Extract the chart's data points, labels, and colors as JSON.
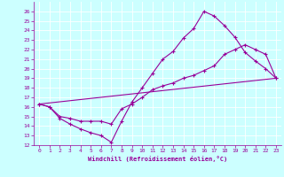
{
  "xlabel": "Windchill (Refroidissement éolien,°C)",
  "bg_color": "#ccffff",
  "line_color": "#990099",
  "grid_color": "#aadddd",
  "xlim": [
    -0.5,
    23.5
  ],
  "ylim": [
    12,
    27
  ],
  "xticks": [
    0,
    1,
    2,
    3,
    4,
    5,
    6,
    7,
    8,
    9,
    10,
    11,
    12,
    13,
    14,
    15,
    16,
    17,
    18,
    19,
    20,
    21,
    22,
    23
  ],
  "yticks": [
    12,
    13,
    14,
    15,
    16,
    17,
    18,
    19,
    20,
    21,
    22,
    23,
    24,
    25,
    26
  ],
  "line1_x": [
    0,
    1,
    2,
    3,
    4,
    5,
    6,
    7,
    8,
    9,
    10,
    11,
    12,
    13,
    14,
    15,
    16,
    17,
    18,
    19,
    20,
    21,
    22,
    23
  ],
  "line1_y": [
    16.3,
    16.0,
    14.8,
    14.2,
    13.7,
    13.3,
    13.0,
    12.3,
    14.5,
    16.5,
    18.0,
    19.5,
    21.0,
    21.8,
    23.2,
    24.2,
    26.0,
    25.5,
    24.5,
    23.3,
    21.7,
    20.8,
    20.0,
    19.0
  ],
  "line2_x": [
    0,
    1,
    2,
    3,
    4,
    5,
    6,
    7,
    8,
    9,
    10,
    11,
    12,
    13,
    14,
    15,
    16,
    17,
    18,
    19,
    20,
    21,
    22,
    23
  ],
  "line2_y": [
    16.3,
    16.0,
    15.0,
    14.8,
    14.5,
    14.5,
    14.5,
    14.2,
    15.8,
    16.3,
    17.0,
    17.8,
    18.2,
    18.5,
    19.0,
    19.3,
    19.8,
    20.3,
    21.5,
    22.0,
    22.5,
    22.0,
    21.5,
    19.0
  ],
  "line3_x": [
    0,
    23
  ],
  "line3_y": [
    16.3,
    19.0
  ]
}
